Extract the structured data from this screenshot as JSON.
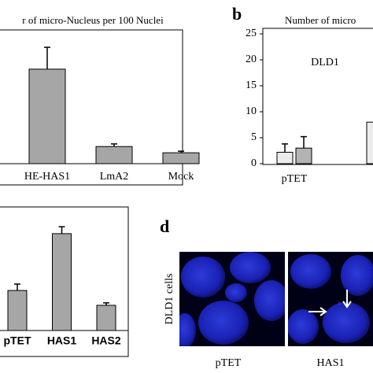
{
  "chart_data": [
    {
      "type": "bar",
      "title": "r of micro-Nucleus per 100 Nuclei",
      "categories": [
        "HE-HAS1",
        "LmA2",
        "Mock"
      ],
      "series": [
        {
          "color": "#a6a6a6",
          "values": [
            18.2,
            3.3,
            2.1
          ],
          "errors": [
            4.2,
            0.5,
            0.3
          ]
        }
      ],
      "ylim": [
        0,
        25
      ]
    },
    {
      "type": "bar",
      "panel_label": "b",
      "title": "Number of micro",
      "annotation": "DLD1",
      "categories": [
        "pTET",
        null
      ],
      "series": [
        {
          "color": "#ececec",
          "values": [
            2.2,
            8.0
          ],
          "errors": [
            1.6,
            null
          ]
        },
        {
          "color": "#b3b3b3",
          "values": [
            3.0,
            null
          ],
          "errors": [
            2.2,
            null
          ]
        }
      ],
      "ylim": [
        0,
        25
      ],
      "yticks": [
        0,
        5,
        10,
        15,
        20,
        25
      ]
    },
    {
      "type": "bar",
      "categories": [
        "pTET",
        "HAS1",
        "HAS2"
      ],
      "series": [
        {
          "color": "#a6a6a6",
          "values": [
            8.1,
            19.6,
            5.1
          ],
          "errors": [
            1.3,
            1.4,
            0.5
          ]
        }
      ],
      "ylim": [
        0,
        25
      ]
    }
  ],
  "panel_d": {
    "panel_label": "d",
    "y_label": "DLD1 cells",
    "images": [
      "pTET",
      "HAS1"
    ]
  }
}
